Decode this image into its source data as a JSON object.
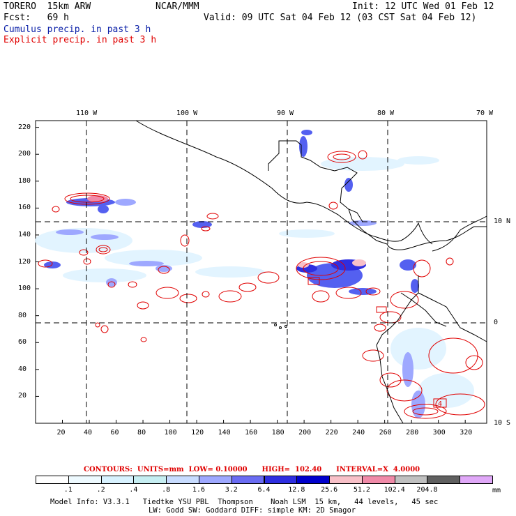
{
  "header": {
    "model": "TORERO  15km ARW",
    "org": "NCAR/MMM",
    "init": "Init: 12 UTC Wed 01 Feb 12",
    "fcst": "Fcst:   69 h",
    "valid": "Valid: 09 UTC Sat 04 Feb 12 (03 CST Sat 04 Feb 12)",
    "cumulus": "Cumulus precip. in past 3 h",
    "explicit": "Explicit precip. in past 3 h"
  },
  "axes": {
    "x_ticks": [
      "20",
      "40",
      "60",
      "80",
      "100",
      "120",
      "140",
      "160",
      "180",
      "200",
      "220",
      "240",
      "260",
      "280",
      "300",
      "320"
    ],
    "y_ticks": [
      "20",
      "40",
      "60",
      "80",
      "100",
      "120",
      "140",
      "160",
      "180",
      "200",
      "220"
    ],
    "lon_labels": [
      "110 W",
      "100 W",
      "90 W",
      "80 W",
      "70 W"
    ],
    "lat_labels": [
      "10 N",
      "0",
      "10 S"
    ]
  },
  "contour_info": {
    "text": "CONTOURS:  UNITS=mm  LOW= 0.10000      HIGH=  102.40      INTERVAL=X  4.0000"
  },
  "legend": {
    "units": "mm",
    "labels": [
      ".1",
      ".2",
      ".4",
      ".8",
      "1.6",
      "3.2",
      "6.4",
      "12.8",
      "25.6",
      "51.2",
      "102.4",
      "204.8"
    ],
    "colors": [
      "#ffffff",
      "#eefaff",
      "#d8f2ff",
      "#c6eef2",
      "#c8dcff",
      "#9ea8ff",
      "#6a6cf2",
      "#2e2ee0",
      "#0000cc",
      "#f8c0c8",
      "#f08aa8",
      "#c0c0c0",
      "#606060",
      "#e0a8f8"
    ]
  },
  "footer": {
    "line1": "Model Info: V3.3.1   Tiedtke YSU PBL  Thompson    Noah LSM  15 km,   44 levels,   45 sec",
    "line2": "LW: Godd SW: Goddard DIFF: simple KM: 2D Smagor"
  },
  "map_labels": {
    "box_label": "4"
  }
}
